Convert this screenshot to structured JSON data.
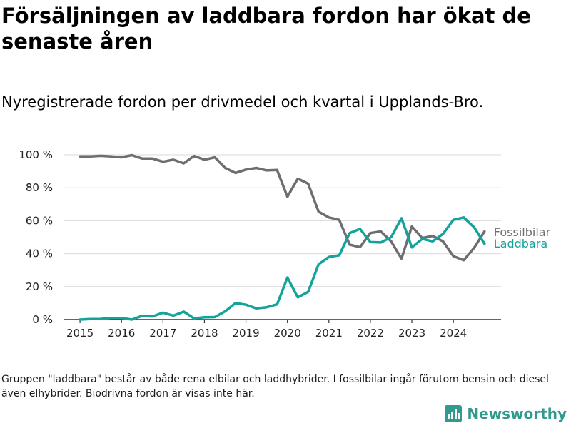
{
  "title": "Försäljningen av laddbara fordon har ökat de senaste åren",
  "subtitle": "Nyregistrerade fordon per drivmedel och kvartal i Upplands-Bro.",
  "note": "Gruppen \"laddbara\" består av både rena elbilar och laddhybrider. I fossilbilar ingår förutom bensin och diesel även elhybrider. Biodrivna fordon är visas inte här.",
  "brand": {
    "name": "Newsworthy",
    "icon": "newsworthy-logo-icon"
  },
  "colors": {
    "fossil": "#6f6d72",
    "laddbara": "#14a39a",
    "grid": "#d9d9d9",
    "axis": "#333333",
    "brand": "#2f9a8d"
  },
  "chart_data": {
    "type": "line",
    "title": "Nyregistrerade fordon per drivmedel och kvartal i Upplands-Bro.",
    "xlabel": "",
    "ylabel": "",
    "ylim": [
      0,
      100
    ],
    "xlim": [
      2014.62,
      2025.15
    ],
    "y_ticks": [
      0,
      20,
      40,
      60,
      80,
      100
    ],
    "y_tick_labels": [
      "0 %",
      "20 %",
      "40 %",
      "60 %",
      "80 %",
      "100 %"
    ],
    "x_ticks": [
      2015,
      2016,
      2017,
      2018,
      2019,
      2020,
      2021,
      2022,
      2023,
      2024
    ],
    "x_tick_labels": [
      "2015",
      "2016",
      "2017",
      "2018",
      "2019",
      "2020",
      "2021",
      "2022",
      "2023",
      "2024"
    ],
    "grid": true,
    "legend": "direct labels at line ends (right)",
    "x": [
      2015.0,
      2015.25,
      2015.5,
      2015.75,
      2016.0,
      2016.25,
      2016.5,
      2016.75,
      2017.0,
      2017.25,
      2017.5,
      2017.75,
      2018.0,
      2018.25,
      2018.5,
      2018.75,
      2019.0,
      2019.25,
      2019.5,
      2019.75,
      2020.0,
      2020.25,
      2020.5,
      2020.75,
      2021.0,
      2021.25,
      2021.5,
      2021.75,
      2022.0,
      2022.25,
      2022.5,
      2022.75,
      2023.0,
      2023.25,
      2023.5,
      2023.75,
      2024.0,
      2024.25,
      2024.5,
      2024.75
    ],
    "series": [
      {
        "name": "Fossilbilar",
        "color_key": "fossil",
        "values": [
          99.0,
          99.0,
          99.4,
          99.0,
          98.5,
          99.8,
          97.7,
          97.7,
          95.8,
          97.0,
          94.8,
          99.3,
          97.0,
          98.5,
          92.0,
          89.0,
          91.0,
          92.0,
          90.5,
          90.8,
          74.5,
          85.5,
          82.5,
          65.5,
          62.0,
          60.5,
          45.5,
          44.0,
          52.5,
          53.5,
          47.5,
          37.0,
          56.5,
          49.5,
          50.8,
          47.5,
          38.5,
          36.0,
          43.5,
          53.5
        ]
      },
      {
        "name": "Laddbara",
        "color_key": "laddbara",
        "values": [
          0.0,
          0.3,
          0.4,
          1.0,
          1.0,
          0.0,
          2.3,
          1.9,
          4.2,
          2.4,
          4.8,
          0.7,
          1.4,
          1.5,
          5.0,
          10.0,
          9.0,
          6.8,
          7.5,
          9.2,
          25.5,
          13.5,
          16.8,
          33.5,
          38.0,
          39.0,
          52.5,
          55.0,
          47.0,
          46.8,
          50.0,
          61.5,
          43.8,
          49.0,
          47.5,
          52.0,
          60.5,
          62.0,
          56.0,
          46.0
        ]
      }
    ]
  }
}
